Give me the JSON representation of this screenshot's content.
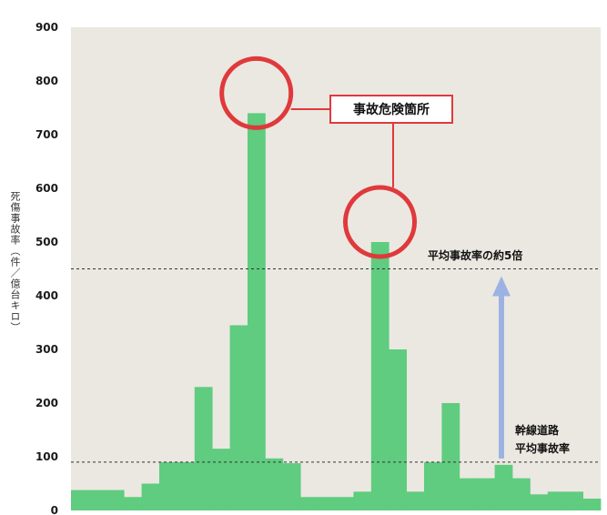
{
  "chart_data": {
    "type": "bar",
    "title": "",
    "xlabel": "",
    "ylabel": "死傷事故率（件／億台キロ）",
    "ylim": [
      0,
      900
    ],
    "yticks": [
      0,
      100,
      200,
      300,
      400,
      500,
      600,
      700,
      800,
      900
    ],
    "grid": false,
    "bar_color": "#5fcc7f",
    "plot_background": "#ebe8e2",
    "callout_color": "#e0393c",
    "arrow_color": "#9cb2e2",
    "values": [
      38,
      38,
      38,
      25,
      50,
      90,
      90,
      230,
      115,
      345,
      740,
      97,
      88,
      25,
      25,
      25,
      35,
      500,
      300,
      35,
      90,
      200,
      60,
      60,
      85,
      60,
      30,
      35,
      35,
      22
    ],
    "reference_lines": [
      {
        "value": 450,
        "label": "平均事故率の約5倍"
      },
      {
        "value": 90,
        "label_lines": [
          "幹線道路",
          "平均事故率"
        ]
      }
    ],
    "highlights": [
      {
        "bar_index": 10,
        "value": 740
      },
      {
        "bar_index": 17,
        "value": 500
      }
    ],
    "callout_label": "事故危険箇所",
    "arrow": {
      "from": 90,
      "to": 450
    }
  }
}
